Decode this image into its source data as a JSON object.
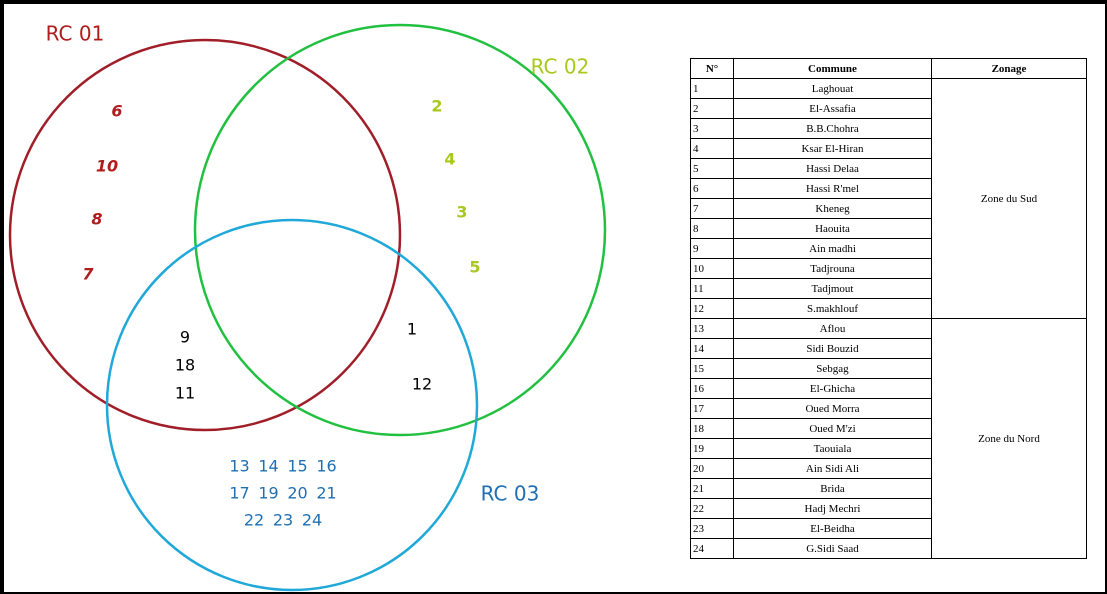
{
  "venn": {
    "sets": [
      {
        "label": "RC 01",
        "color": "#b01c1c"
      },
      {
        "label": "RC 02",
        "color": "#a8c81e"
      },
      {
        "label": "RC 03",
        "color": "#1f6fb2"
      }
    ],
    "only_rc01": [
      6,
      10,
      8,
      7
    ],
    "only_rc02": [
      2,
      4,
      3,
      5
    ],
    "rc01_rc03": [
      9,
      18,
      11
    ],
    "rc02_rc03": [
      1,
      12
    ],
    "only_rc03": [
      [
        13,
        14,
        15,
        16
      ],
      [
        17,
        19,
        20,
        21
      ],
      [
        22,
        23,
        24
      ]
    ]
  },
  "table": {
    "header": [
      "N°",
      "Commune",
      "Zonage"
    ],
    "rows": [
      [
        1,
        "Laghouat"
      ],
      [
        2,
        "El-Assafia"
      ],
      [
        3,
        "B.B.Chohra"
      ],
      [
        4,
        "Ksar El-Hiran"
      ],
      [
        5,
        "Hassi Delaa"
      ],
      [
        6,
        "Hassi R'mel"
      ],
      [
        7,
        "Kheneg"
      ],
      [
        8,
        "Haouita"
      ],
      [
        9,
        "Ain madhi"
      ],
      [
        10,
        "Tadjrouna"
      ],
      [
        11,
        "Tadjmout"
      ],
      [
        12,
        "S.makhlouf"
      ],
      [
        13,
        "Aflou"
      ],
      [
        14,
        "Sidi Bouzid"
      ],
      [
        15,
        "Sebgag"
      ],
      [
        16,
        "El-Ghicha"
      ],
      [
        17,
        "Oued Morra"
      ],
      [
        18,
        "Oued M'zi"
      ],
      [
        19,
        "Taouiala"
      ],
      [
        20,
        "Ain Sidi Ali"
      ],
      [
        21,
        "Brida"
      ],
      [
        22,
        "Hadj Mechri"
      ],
      [
        23,
        "El-Beidha"
      ],
      [
        24,
        "G.Sidi Saad"
      ]
    ],
    "zones": [
      "Zone du Sud",
      "Zone du Nord"
    ]
  }
}
